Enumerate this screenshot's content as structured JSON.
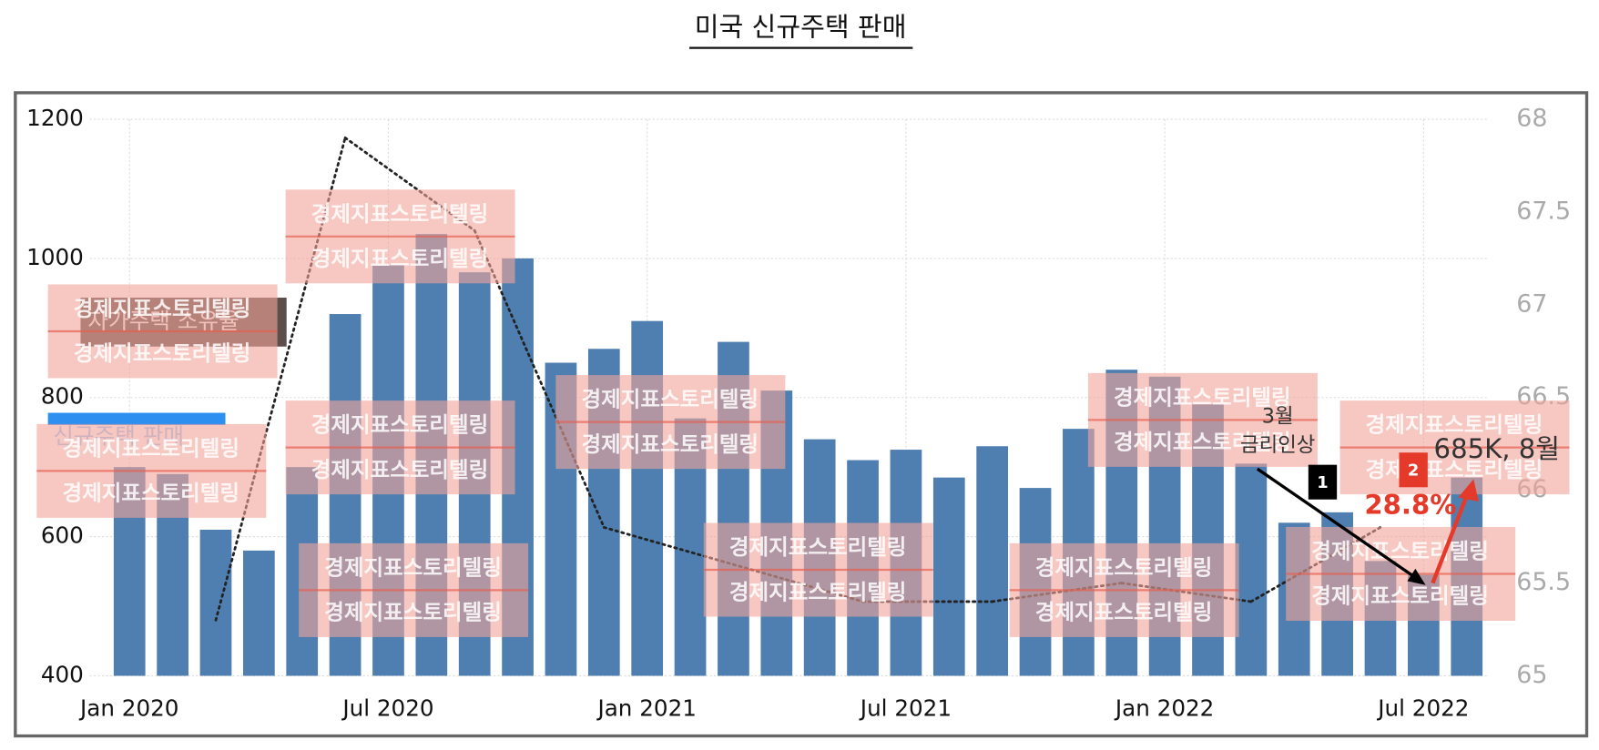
{
  "chart_data": {
    "type": "bar",
    "title": "미국 신규주택 판매",
    "categories": [
      "Jan 2020",
      null,
      null,
      null,
      null,
      null,
      "Jul 2020",
      null,
      null,
      null,
      null,
      null,
      "Jan 2021",
      null,
      null,
      null,
      null,
      null,
      "Jul 2021",
      null,
      null,
      null,
      null,
      null,
      "Jan 2022",
      null,
      null,
      null,
      null,
      null,
      "Jul 2022",
      null
    ],
    "series": [
      {
        "name": "신규주택 판매",
        "color": "#4f7fb0",
        "values": [
          700,
          690,
          610,
          580,
          700,
          920,
          990,
          1035,
          980,
          1000,
          850,
          870,
          910,
          770,
          880,
          810,
          740,
          710,
          725,
          685,
          730,
          670,
          755,
          840,
          830,
          790,
          705,
          620,
          635,
          565,
          545,
          685
        ]
      },
      {
        "name": "자가주택 소유율",
        "type": "line",
        "axis": "y2",
        "color": "#222222",
        "values": [
          null,
          null,
          65.3,
          null,
          null,
          67.9,
          null,
          null,
          67.4,
          null,
          null,
          65.8,
          null,
          null,
          65.6,
          null,
          null,
          65.4,
          null,
          null,
          65.4,
          null,
          null,
          65.5,
          null,
          null,
          65.4,
          null,
          null,
          65.8,
          null,
          null
        ]
      }
    ],
    "ylim": [
      400,
      1200
    ],
    "yticks": [
      400,
      600,
      800,
      1000,
      1200
    ],
    "y2lim": [
      65,
      68
    ],
    "y2ticks": [
      65,
      65.5,
      66,
      66.5,
      67,
      67.5,
      68
    ],
    "grid": true,
    "annotations": [
      "3월",
      "금리인상",
      "685K, 8월",
      "28.8%",
      "1",
      "2"
    ],
    "watermark": "경제지표스토리텔링"
  }
}
